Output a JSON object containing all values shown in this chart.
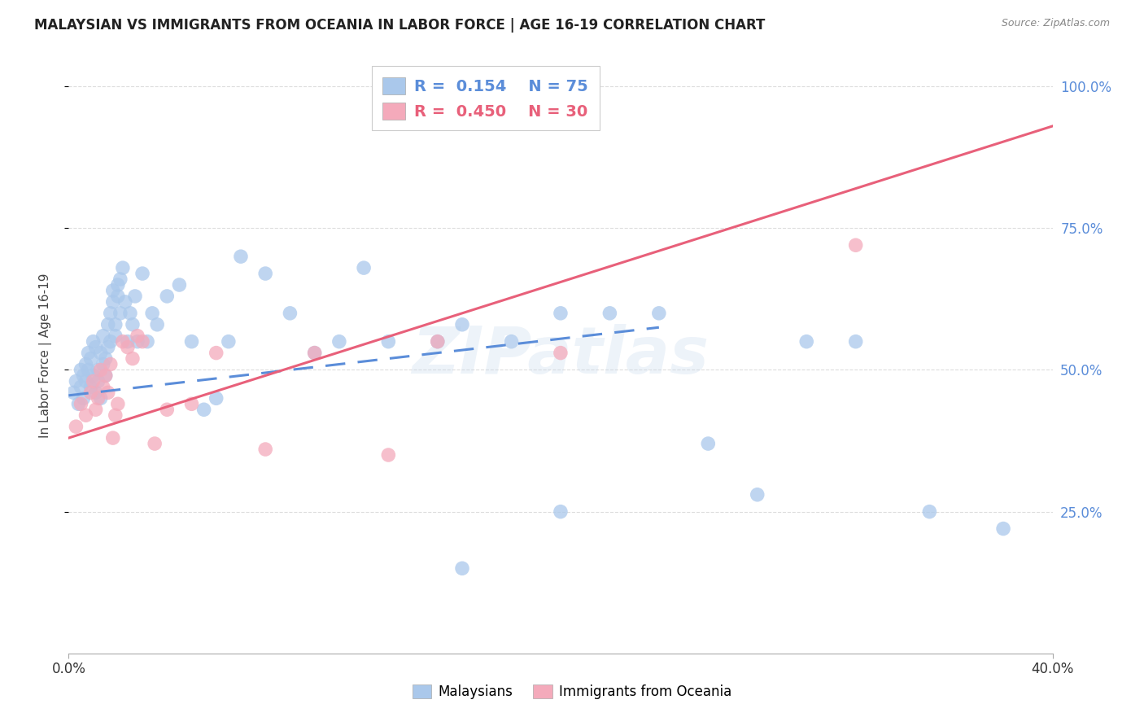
{
  "title": "MALAYSIAN VS IMMIGRANTS FROM OCEANIA IN LABOR FORCE | AGE 16-19 CORRELATION CHART",
  "source": "Source: ZipAtlas.com",
  "ylabel": "In Labor Force | Age 16-19",
  "legend_blue_r": "0.154",
  "legend_blue_n": "75",
  "legend_pink_r": "0.450",
  "legend_pink_n": "30",
  "legend_blue_label": "Malaysians",
  "legend_pink_label": "Immigrants from Oceania",
  "watermark": "ZIPatlas",
  "blue_color": "#aac8eb",
  "pink_color": "#f4aabb",
  "blue_line_color": "#5b8dd9",
  "pink_line_color": "#e8607a",
  "background_color": "#ffffff",
  "grid_color": "#dddddd",
  "x_min": 0.0,
  "x_max": 0.4,
  "y_min": 0.0,
  "y_max": 1.05,
  "blue_scatter_x": [
    0.002,
    0.003,
    0.004,
    0.005,
    0.005,
    0.006,
    0.006,
    0.007,
    0.007,
    0.008,
    0.008,
    0.009,
    0.009,
    0.01,
    0.01,
    0.011,
    0.011,
    0.012,
    0.012,
    0.013,
    0.013,
    0.014,
    0.014,
    0.015,
    0.015,
    0.016,
    0.016,
    0.017,
    0.017,
    0.018,
    0.018,
    0.019,
    0.019,
    0.02,
    0.02,
    0.021,
    0.021,
    0.022,
    0.023,
    0.024,
    0.025,
    0.026,
    0.027,
    0.028,
    0.03,
    0.032,
    0.034,
    0.036,
    0.04,
    0.045,
    0.05,
    0.055,
    0.06,
    0.065,
    0.07,
    0.08,
    0.09,
    0.1,
    0.11,
    0.12,
    0.13,
    0.15,
    0.16,
    0.18,
    0.2,
    0.22,
    0.24,
    0.26,
    0.28,
    0.3,
    0.32,
    0.35,
    0.38,
    0.2,
    0.16
  ],
  "blue_scatter_y": [
    0.46,
    0.48,
    0.44,
    0.5,
    0.47,
    0.49,
    0.45,
    0.51,
    0.48,
    0.53,
    0.5,
    0.47,
    0.52,
    0.49,
    0.55,
    0.46,
    0.54,
    0.5,
    0.48,
    0.53,
    0.45,
    0.51,
    0.56,
    0.49,
    0.52,
    0.54,
    0.58,
    0.55,
    0.6,
    0.62,
    0.64,
    0.58,
    0.56,
    0.63,
    0.65,
    0.6,
    0.66,
    0.68,
    0.62,
    0.55,
    0.6,
    0.58,
    0.63,
    0.55,
    0.67,
    0.55,
    0.6,
    0.58,
    0.63,
    0.65,
    0.55,
    0.43,
    0.45,
    0.55,
    0.7,
    0.67,
    0.6,
    0.53,
    0.55,
    0.68,
    0.55,
    0.55,
    0.58,
    0.55,
    0.6,
    0.6,
    0.6,
    0.37,
    0.28,
    0.55,
    0.55,
    0.25,
    0.22,
    0.25,
    0.15
  ],
  "pink_scatter_x": [
    0.003,
    0.005,
    0.007,
    0.009,
    0.01,
    0.011,
    0.012,
    0.013,
    0.014,
    0.015,
    0.016,
    0.017,
    0.018,
    0.019,
    0.02,
    0.022,
    0.024,
    0.026,
    0.028,
    0.03,
    0.035,
    0.04,
    0.05,
    0.06,
    0.08,
    0.1,
    0.13,
    0.15,
    0.2,
    0.32
  ],
  "pink_scatter_y": [
    0.4,
    0.44,
    0.42,
    0.46,
    0.48,
    0.43,
    0.45,
    0.5,
    0.47,
    0.49,
    0.46,
    0.51,
    0.38,
    0.42,
    0.44,
    0.55,
    0.54,
    0.52,
    0.56,
    0.55,
    0.37,
    0.43,
    0.44,
    0.53,
    0.36,
    0.53,
    0.35,
    0.55,
    0.53,
    0.72
  ],
  "blue_trend_x": [
    0.0,
    0.24
  ],
  "blue_trend_y": [
    0.455,
    0.575
  ],
  "pink_trend_x": [
    0.0,
    0.4
  ],
  "pink_trend_y": [
    0.38,
    0.93
  ],
  "ytick_positions": [
    0.25,
    0.5,
    0.75,
    1.0
  ],
  "ytick_labels": [
    "25.0%",
    "50.0%",
    "75.0%",
    "100.0%"
  ]
}
